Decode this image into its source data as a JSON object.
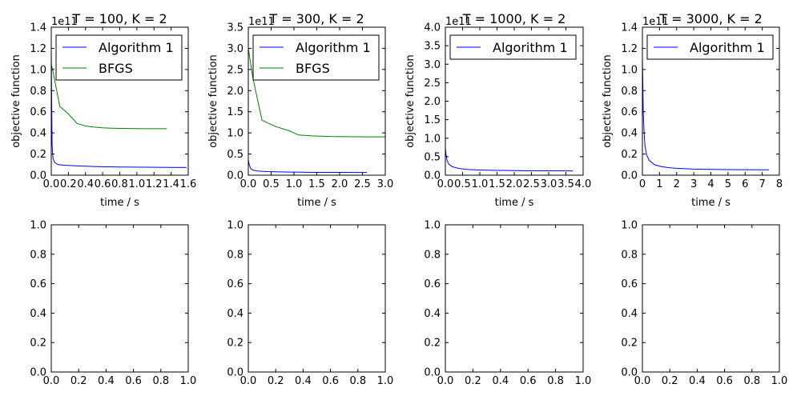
{
  "chart_data": [
    {
      "type": "line",
      "title": "T = 100, K = 2",
      "xlabel": "time / s",
      "ylabel": "objective function",
      "xlim": [
        0,
        1.6
      ],
      "ylim": [
        0,
        1.4
      ],
      "x_ticks": [
        "0.0",
        "0.2",
        "0.4",
        "0.6",
        "0.8",
        "1.0",
        "1.2",
        "1.4",
        "1.6"
      ],
      "y_ticks": [
        "0.0",
        "0.2",
        "0.4",
        "0.6",
        "0.8",
        "1.0",
        "1.2",
        "1.4"
      ],
      "offset_label": "1e11",
      "legend": "top",
      "series": [
        {
          "name": "Algorithm 1",
          "color": "#0000ff",
          "x": [
            0,
            0.005,
            0.01,
            0.02,
            0.04,
            0.08,
            0.15,
            0.3,
            0.5,
            0.8,
            1.1,
            1.4,
            1.58
          ],
          "y": [
            1.2,
            0.65,
            0.28,
            0.16,
            0.12,
            0.1,
            0.095,
            0.088,
            0.082,
            0.078,
            0.076,
            0.074,
            0.073
          ]
        },
        {
          "name": "BFGS",
          "color": "#008000",
          "x": [
            0.0,
            0.02,
            0.1,
            0.2,
            0.3,
            0.4,
            0.5,
            0.6,
            0.7,
            0.9,
            1.1,
            1.3,
            1.35
          ],
          "y": [
            1.05,
            0.98,
            0.65,
            0.58,
            0.49,
            0.465,
            0.455,
            0.448,
            0.445,
            0.442,
            0.44,
            0.44,
            0.44
          ]
        }
      ]
    },
    {
      "type": "line",
      "title": "T = 300, K = 2",
      "xlabel": "time / s",
      "ylabel": "objective function",
      "xlim": [
        0,
        3.0
      ],
      "ylim": [
        0,
        3.5
      ],
      "x_ticks": [
        "0.0",
        "0.5",
        "1.0",
        "1.5",
        "2.0",
        "2.5",
        "3.0"
      ],
      "y_ticks": [
        "0.0",
        "0.5",
        "1.0",
        "1.5",
        "2.0",
        "2.5",
        "3.0",
        "3.5"
      ],
      "offset_label": "1e11",
      "legend": "top",
      "series": [
        {
          "name": "Algorithm 1",
          "color": "#0000ff",
          "x": [
            0,
            0.02,
            0.05,
            0.1,
            0.2,
            0.4,
            0.8,
            1.2,
            1.6,
            2.0,
            2.4,
            2.6
          ],
          "y": [
            0.36,
            0.25,
            0.16,
            0.12,
            0.1,
            0.085,
            0.075,
            0.07,
            0.067,
            0.065,
            0.063,
            0.063
          ]
        },
        {
          "name": "BFGS",
          "color": "#008000",
          "x": [
            0,
            0.1,
            0.3,
            0.6,
            0.9,
            1.1,
            1.4,
            1.8,
            2.2,
            2.6,
            3.0
          ],
          "y": [
            3.0,
            2.3,
            1.3,
            1.15,
            1.05,
            0.95,
            0.93,
            0.915,
            0.91,
            0.905,
            0.905
          ]
        }
      ]
    },
    {
      "type": "line",
      "title": "T = 1000, K = 2",
      "xlabel": "time / s",
      "ylabel": "objective function",
      "xlim": [
        0,
        4.0
      ],
      "ylim": [
        0,
        4.0
      ],
      "x_ticks": [
        "0.0",
        "0.5",
        "1.0",
        "1.5",
        "2.0",
        "2.5",
        "3.0",
        "3.5",
        "4.0"
      ],
      "y_ticks": [
        "0.0",
        "0.5",
        "1.0",
        "1.5",
        "2.0",
        "2.5",
        "3.0",
        "3.5",
        "4.0"
      ],
      "offset_label": "1e11",
      "legend": "top",
      "series": [
        {
          "name": "Algorithm 1",
          "color": "#0000ff",
          "x": [
            0,
            0.02,
            0.05,
            0.1,
            0.2,
            0.4,
            0.7,
            1.0,
            1.5,
            2.0,
            2.5,
            3.0,
            3.5,
            3.7
          ],
          "y": [
            0.75,
            0.55,
            0.4,
            0.3,
            0.23,
            0.18,
            0.15,
            0.14,
            0.13,
            0.125,
            0.12,
            0.118,
            0.116,
            0.115
          ]
        }
      ]
    },
    {
      "type": "line",
      "title": "T = 3000, K = 2",
      "xlabel": "time / s",
      "ylabel": "objective function",
      "xlim": [
        0,
        8
      ],
      "ylim": [
        0,
        1.4
      ],
      "x_ticks": [
        "0",
        "1",
        "2",
        "3",
        "4",
        "5",
        "6",
        "7",
        "8"
      ],
      "y_ticks": [
        "0.0",
        "0.2",
        "0.4",
        "0.6",
        "0.8",
        "1.0",
        "1.2",
        "1.4"
      ],
      "offset_label": "1e11",
      "legend": "top",
      "series": [
        {
          "name": "Algorithm 1",
          "color": "#0000ff",
          "x": [
            0,
            0.02,
            0.05,
            0.1,
            0.15,
            0.25,
            0.4,
            0.7,
            1.0,
            1.5,
            2.0,
            3.0,
            4.0,
            5.0,
            6.0,
            7.0,
            7.4
          ],
          "y": [
            1.1,
            0.92,
            0.6,
            0.4,
            0.28,
            0.19,
            0.14,
            0.1,
            0.085,
            0.072,
            0.065,
            0.058,
            0.055,
            0.053,
            0.052,
            0.051,
            0.051
          ]
        }
      ]
    },
    {
      "type": "line",
      "xlim": [
        0,
        1
      ],
      "ylim": [
        0,
        1
      ],
      "x_ticks": [
        "0.0",
        "0.2",
        "0.4",
        "0.6",
        "0.8",
        "1.0"
      ],
      "y_ticks": [
        "0.0",
        "0.2",
        "0.4",
        "0.6",
        "0.8",
        "1.0"
      ],
      "series": []
    },
    {
      "type": "line",
      "xlim": [
        0,
        1
      ],
      "ylim": [
        0,
        1
      ],
      "x_ticks": [
        "0.0",
        "0.2",
        "0.4",
        "0.6",
        "0.8",
        "1.0"
      ],
      "y_ticks": [
        "0.0",
        "0.2",
        "0.4",
        "0.6",
        "0.8",
        "1.0"
      ],
      "series": []
    },
    {
      "type": "line",
      "xlim": [
        0,
        1
      ],
      "ylim": [
        0,
        1
      ],
      "x_ticks": [
        "0.0",
        "0.2",
        "0.4",
        "0.6",
        "0.8",
        "1.0"
      ],
      "y_ticks": [
        "0.0",
        "0.2",
        "0.4",
        "0.6",
        "0.8",
        "1.0"
      ],
      "series": []
    },
    {
      "type": "line",
      "xlim": [
        0,
        1
      ],
      "ylim": [
        0,
        1
      ],
      "x_ticks": [
        "0.0",
        "0.2",
        "0.4",
        "0.6",
        "0.8",
        "1.0"
      ],
      "y_ticks": [
        "0.0",
        "0.2",
        "0.4",
        "0.6",
        "0.8",
        "1.0"
      ],
      "series": []
    }
  ]
}
